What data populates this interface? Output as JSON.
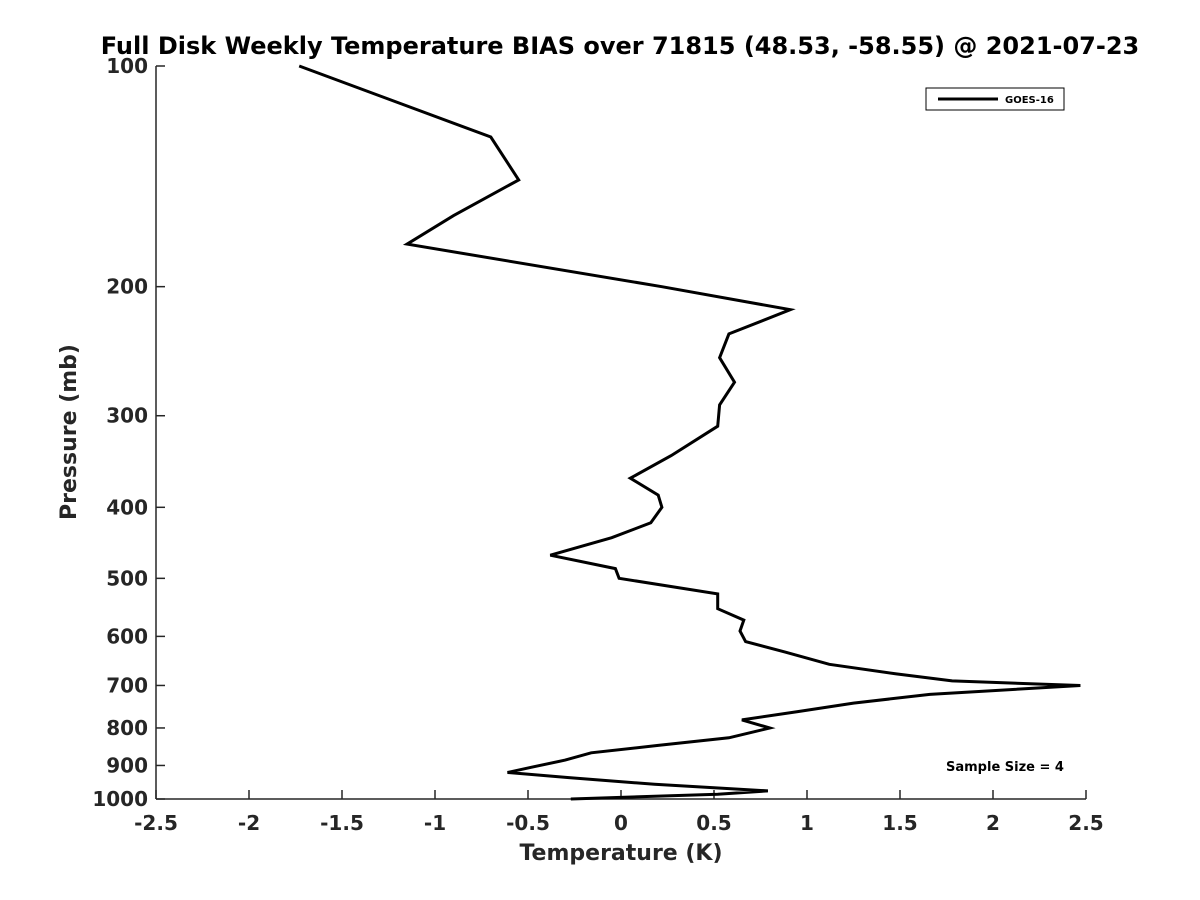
{
  "chart_data": {
    "type": "line",
    "title": "Full Disk Weekly Temperature BIAS over 71815 (48.53, -58.55) @ 2021-07-23",
    "xlabel": "Temperature (K)",
    "ylabel": "Pressure (mb)",
    "xlim": [
      -2.5,
      2.5
    ],
    "ylim": [
      100,
      1000
    ],
    "y_scale": "log",
    "y_reversed": true,
    "x_ticks": [
      -2.5,
      -2,
      -1.5,
      -1,
      -0.5,
      0,
      0.5,
      1,
      1.5,
      2,
      2.5
    ],
    "x_tick_labels": [
      "-2.5",
      "-2",
      "-1.5",
      "-1",
      "-0.5",
      "0",
      "0.5",
      "1",
      "1.5",
      "2",
      "2.5"
    ],
    "y_ticks": [
      100,
      200,
      300,
      400,
      500,
      600,
      700,
      800,
      900,
      1000
    ],
    "y_tick_labels": [
      "100",
      "200",
      "300",
      "400",
      "500",
      "600",
      "700",
      "800",
      "900",
      "1000"
    ],
    "grid": false,
    "legend_position": "top-right",
    "series": [
      {
        "name": "GOES-16",
        "color": "#000000",
        "points": [
          [
            -1.73,
            100
          ],
          [
            -0.7,
            125
          ],
          [
            -0.55,
            143
          ],
          [
            -0.9,
            160
          ],
          [
            -1.15,
            175
          ],
          [
            0.22,
            200
          ],
          [
            0.91,
            215
          ],
          [
            0.58,
            232
          ],
          [
            0.53,
            250
          ],
          [
            0.61,
            270
          ],
          [
            0.53,
            290
          ],
          [
            0.52,
            310
          ],
          [
            0.27,
            340
          ],
          [
            0.05,
            365
          ],
          [
            0.2,
            385
          ],
          [
            0.22,
            400
          ],
          [
            0.16,
            420
          ],
          [
            -0.05,
            440
          ],
          [
            -0.38,
            465
          ],
          [
            -0.03,
            485
          ],
          [
            -0.01,
            500
          ],
          [
            0.52,
            525
          ],
          [
            0.52,
            550
          ],
          [
            0.66,
            570
          ],
          [
            0.64,
            590
          ],
          [
            0.67,
            610
          ],
          [
            0.88,
            630
          ],
          [
            1.12,
            655
          ],
          [
            1.48,
            675
          ],
          [
            1.78,
            690
          ],
          [
            2.47,
            700
          ],
          [
            1.66,
            720
          ],
          [
            1.25,
            740
          ],
          [
            0.95,
            760
          ],
          [
            0.65,
            780
          ],
          [
            0.8,
            800
          ],
          [
            0.58,
            825
          ],
          [
            0.2,
            845
          ],
          [
            -0.16,
            865
          ],
          [
            -0.3,
            885
          ],
          [
            -0.48,
            905
          ],
          [
            -0.61,
            920
          ],
          [
            -0.28,
            935
          ],
          [
            0.18,
            955
          ],
          [
            0.79,
            975
          ],
          [
            0.52,
            985
          ],
          [
            -0.27,
            1000
          ]
        ]
      }
    ],
    "legend": [
      {
        "label": "GOES-16"
      }
    ],
    "annotations": [
      {
        "text": "Sample Size = 4",
        "position": "bottom-right"
      }
    ]
  }
}
